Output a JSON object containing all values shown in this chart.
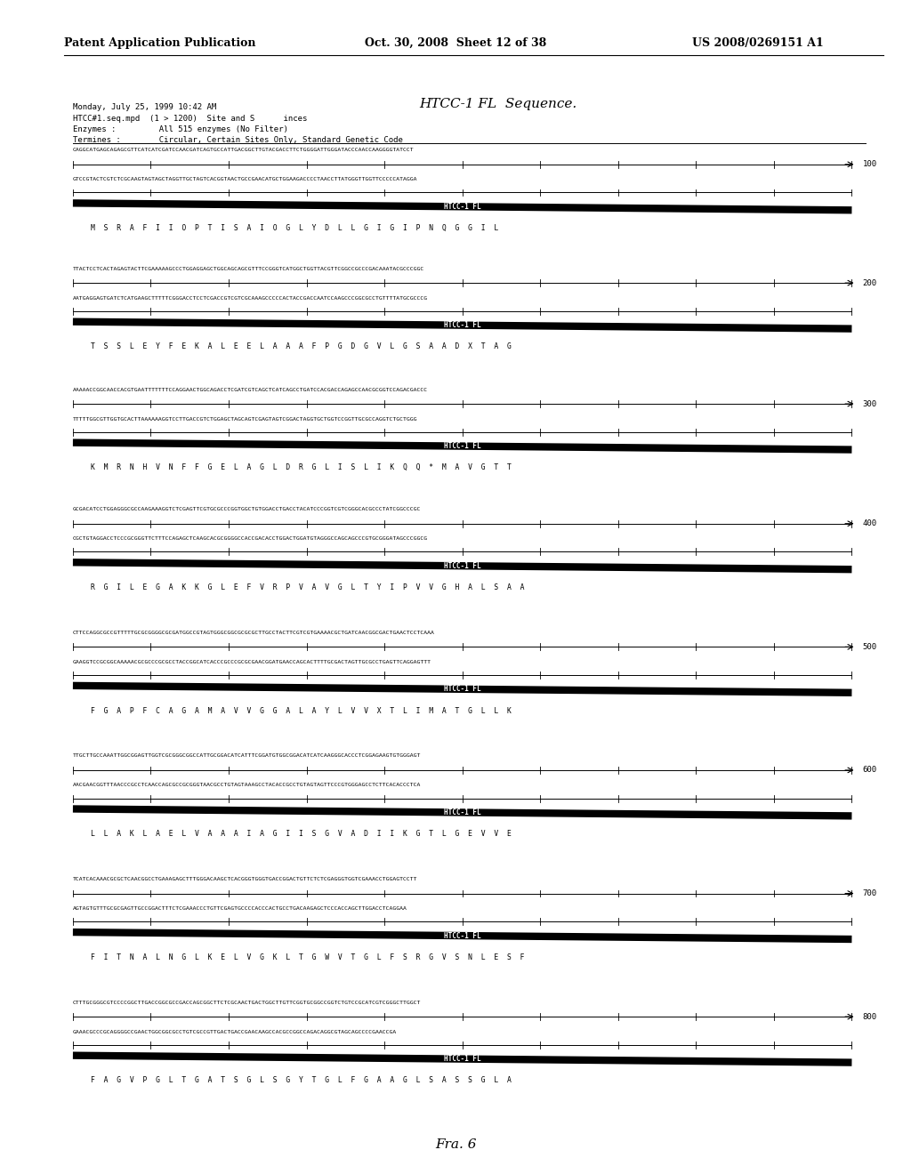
{
  "header_left": "Patent Application Publication",
  "header_center": "Oct. 30, 2008  Sheet 12 of 38",
  "header_right": "US 2008/0269151 A1",
  "title": "HTCC-1 FL  Sequence.",
  "footer": "Fra. 6",
  "bg_color": "#ffffff",
  "text_color": "#000000",
  "meta1": "Monday, July 25, 1999 10:42 AM",
  "meta2": "HTCC#1.seq.mpd  (1 > 1200)  Site and S      inces",
  "meta3": "Enzymes :         All 515 enzymes (No Filter)",
  "meta4": "Termines :        Circular, Certain Sites Only, Standard Genetic Code",
  "blocks": [
    {
      "dna_top": "CAGGCATGAGCAGAGCGTTCATCATCGATCCAACGATCAGTGCCATTGACGGCTTGTACGACCTTCTGGGGATTGGGATACCCAACCAAGGGGTATCCT",
      "num": "100",
      "dna_bot": "GTCCGTACTCGTCTCGCAAGTAGTAGCTAGGTTGCTAGTCACGGTAACTGCCGAACATGCTGGAAGACCCCTAACCTTATGGGTTGGTTCCCCCATAGGA",
      "aa": "M  S  R  A  F  I  I  O  P  T  I  S  A  I  O  G  L  Y  D  L  L  G  I  G  I  P  N  Q  G  G  I  L"
    },
    {
      "dna_top": "TTACTCCTCACTAGAGTACTTCGAAAAAGCCCTGGAGGAGCTGGCAGCAGCGTTTCCGGGTCATGGCTGGTTACGTTCGGCCGCCCGACAAATACGCCCGGC",
      "num": "200",
      "dna_bot": "AATGAGGAGTGATCTCATGAAGCTTTTTCGGGACCTCCTCGACCGTCGTCGCAAAGCCCCCACTACCGACCAATCCAAGCCCGGCGCCTGTTTTATGCGCCCG",
      "aa": "T  S  S  L  E  Y  F  E  K  A  L  E  E  L  A  A  A  F  P  G  D  G  V  L  G  S  A  A  D  X  T  A  G"
    },
    {
      "dna_top": "AAAAACCGGCAACCACGTGAATTTTTTTCCAGGAACTGGCAGACCTCGATCGTCAGCTCATCAGCCTGATCCACGACCAGAGCCAACGCGGTCCAGACGACCC",
      "num": "300",
      "dna_bot": "TTTTTGGCGTTGGTGCACTTAAAAAAGGTCCTTGACCGTCTGGAGCTAGCAGTCGAGTAGTCGGACTAGGTGCTGGTCCGGTTGCGCCAGGTCTGCTGGG",
      "aa": "K  M  R  N  H  V  N  F  F  G  E  L  A  G  L  D  R  G  L  I  S  L  I  K  Q  Q  *  M  A  V  G  T  T"
    },
    {
      "dna_top": "GCGACATCCTGGAGGGCGCCAAGAAAGGTCTCGAGTTCGTGCGCCCGGTGGCTGTGGACCTGACCTACATCCCGGTCGTCGGGCACGCCCTATCGGCCCGC",
      "num": "400",
      "dna_bot": "CGCTGTAGGACCTCCCGCGGGTTCTTTCCAGAGCTCAAGCACGCGGGGCCACCGACACCTGGACTGGATGTAGGGCCAGCAGCCCGTGCGGGATAGCCCGGCG",
      "aa": "R  G  I  L  E  G  A  K  K  G  L  E  F  V  R  P  V  A  V  G  L  T  Y  I  P  V  V  G  H  A  L  S  A  A"
    },
    {
      "dna_top": "CTTCCAGGCGCCGTTTTTGCGCGGGGCGCGATGGCCGTAGTGGGCGGCGCGCGCTTGCCTACTTCGTCGTGAAAACGCTGATCAACGGCGACTGAACTCCTCAAA",
      "num": "500",
      "dna_bot": "GAAGGTCCGCGGCAAAAACGCGCCCGCGCCTACCGGCATCACCCGCCCGCGCGAACGGATGAACCAGCACTTTTGCGACTAGTTGCGCCTGAGTTCAGGAGTTT",
      "aa": "F  G  A  P  F  C  A  G  A  M  A  V  V  G  G  A  L  A  Y  L  V  V  X  T  L  I  M  A  T  G  L  L  K"
    },
    {
      "dna_top": "TTGCTTGCCAAATTGGCGGAGTTGGTCGCGGGCGGCCATTGCGGACATCATTTCGGATGTGGCGGACATCATCAAGGGCACCCTCGGAGAAGTGTGGGAGT",
      "num": "600",
      "dna_bot": "AACGAACGGTTTAACCCGCCTCAACCAGCGCCGCGGGTAACGCCTGTAGTAAAGCCTACACCGCCTGTAGTAGTTCCCGTGGGAGCCTCTTCACACCCTCA",
      "aa": "L  L  A  K  L  A  E  L  V  A  A  A  I  A  G  I  I  S  G  V  A  D  I  I  K  G  T  L  G  E  V  V  E"
    },
    {
      "dna_top": "TCATCACAAACGCGCTCAACGGCCTGAAAGAGCTTTGGGACAAGCTCACGGGTGGGTGACCGGACTGTTCTCTCGAGGGTGGTCGAAACCTGGAGTCCTT",
      "num": "700",
      "dna_bot": "AGTAGTGTTTGCGCGAGTTGCCGGACTTTCTCGAAACCCTGTTCGAGTGCCCCACCCACTGCCTGACAAGAGCTCCCACCAGCTTGGACCTCAGGAA",
      "aa": "F  I  T  N  A  L  N  G  L  K  E  L  V  G  K  L  T  G  W  V  T  G  L  F  S  R  G  V  S  N  L  E  S  F"
    },
    {
      "dna_top": "CTTTGCGGGCGTCCCCGGCTTGACCGGCGCCGACCAGCGGCTTCTCGCAACTGACTGGCTTGTTCGGTGCGGCCGGTCTGTCCGCATCGTCGGGCTTGGCT",
      "num": "800",
      "dna_bot": "GAAACGCCCGCAGGGGCCGAACTGGCGGCGCCTGTCGCCGTTGACTGACCGAACAAGCCACGCCGGCCAGACAGGCGTAGCAGCCCCGAACCGA",
      "aa": "F  A  G  V  P  G  L  T  G  A  T  S  G  L  S  G  Y  T  G  L  F  G  A  A  G  L  S  A  S  S  G  L  A"
    }
  ]
}
